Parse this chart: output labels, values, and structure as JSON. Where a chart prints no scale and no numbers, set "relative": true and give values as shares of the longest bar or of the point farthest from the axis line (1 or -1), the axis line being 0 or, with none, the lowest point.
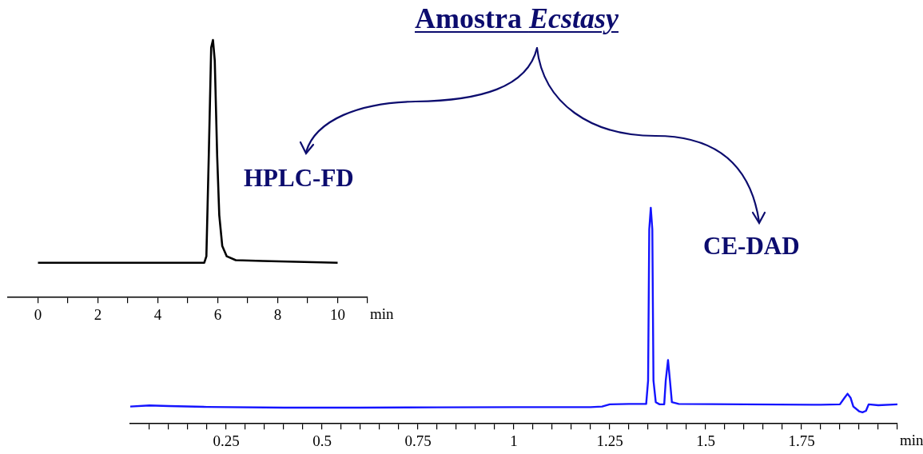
{
  "chart_data": [
    {
      "type": "line",
      "title": "HPLC-FD",
      "annotations": [
        "Amostra Ecstasy"
      ],
      "xlabel": "min",
      "relative": true,
      "marker": "none",
      "grid": false,
      "legend": false,
      "xlim": [
        -1,
        11
      ],
      "xticks": [
        0,
        {
          "value": 1,
          "label": null
        },
        2,
        {
          "value": 3,
          "label": null
        },
        4,
        {
          "value": 5,
          "label": null
        },
        6,
        {
          "value": 7,
          "label": null
        },
        8,
        {
          "value": 9,
          "label": null
        },
        10,
        {
          "value": 11,
          "label": null
        }
      ],
      "x": [
        0,
        5.55,
        5.62,
        5.7,
        5.78,
        5.84,
        5.9,
        5.98,
        6.05,
        6.15,
        6.3,
        6.6,
        7.5,
        10
      ],
      "series": [
        {
          "color": "#000000",
          "values": [
            0.135,
            0.135,
            0.16,
            0.55,
            0.97,
            1,
            0.92,
            0.55,
            0.32,
            0.2,
            0.16,
            0.145,
            0.142,
            0.135
          ]
        }
      ]
    },
    {
      "type": "line",
      "title": "CE-DAD",
      "xlabel": "min",
      "relative": true,
      "marker": "none",
      "grid": false,
      "legend": false,
      "xlim": [
        0,
        2
      ],
      "xticks": [
        {
          "value": 0.05,
          "label": null
        },
        {
          "value": 0.1,
          "label": null
        },
        {
          "value": 0.15,
          "label": null
        },
        {
          "value": 0.2,
          "label": null
        },
        0.25,
        {
          "value": 0.3,
          "label": null
        },
        {
          "value": 0.35,
          "label": null
        },
        {
          "value": 0.4,
          "label": null
        },
        {
          "value": 0.45,
          "label": null
        },
        0.5,
        {
          "value": 0.55,
          "label": null
        },
        {
          "value": 0.6,
          "label": null
        },
        {
          "value": 0.65,
          "label": null
        },
        {
          "value": 0.7,
          "label": null
        },
        0.75,
        {
          "value": 0.8,
          "label": null
        },
        {
          "value": 0.85,
          "label": null
        },
        {
          "value": 0.9,
          "label": null
        },
        {
          "value": 0.95,
          "label": null
        },
        1,
        {
          "value": 1.05,
          "label": null
        },
        {
          "value": 1.1,
          "label": null
        },
        {
          "value": 1.15,
          "label": null
        },
        {
          "value": 1.2,
          "label": null
        },
        1.25,
        {
          "value": 1.3,
          "label": null
        },
        {
          "value": 1.35,
          "label": null
        },
        {
          "value": 1.4,
          "label": null
        },
        {
          "value": 1.45,
          "label": null
        },
        1.5,
        {
          "value": 1.55,
          "label": null
        },
        {
          "value": 1.6,
          "label": null
        },
        {
          "value": 1.65,
          "label": null
        },
        {
          "value": 1.7,
          "label": null
        },
        1.75,
        {
          "value": 1.8,
          "label": null
        },
        {
          "value": 1.85,
          "label": null
        },
        {
          "value": 1.9,
          "label": null
        },
        {
          "value": 1.95,
          "label": null
        },
        {
          "value": 2,
          "label": null
        }
      ],
      "x": [
        0,
        0.05,
        0.1,
        0.2,
        0.4,
        0.6,
        0.8,
        1.0,
        1.2,
        1.23,
        1.25,
        1.3,
        1.345,
        1.35,
        1.353,
        1.357,
        1.361,
        1.364,
        1.37,
        1.38,
        1.392,
        1.396,
        1.402,
        1.407,
        1.412,
        1.43,
        1.6,
        1.8,
        1.85,
        1.862,
        1.87,
        1.878,
        1.885,
        1.9,
        1.909,
        1.918,
        1.925,
        1.95,
        2.0
      ],
      "series": [
        {
          "color": "#1414ff",
          "values": [
            0.08,
            0.085,
            0.082,
            0.078,
            0.075,
            0.075,
            0.076,
            0.077,
            0.077,
            0.08,
            0.09,
            0.092,
            0.092,
            0.2,
            0.9,
            1,
            0.9,
            0.2,
            0.1,
            0.09,
            0.09,
            0.2,
            0.295,
            0.2,
            0.1,
            0.092,
            0.09,
            0.088,
            0.09,
            0.12,
            0.139,
            0.12,
            0.08,
            0.058,
            0.053,
            0.06,
            0.09,
            0.086,
            0.09
          ]
        }
      ]
    }
  ]
}
